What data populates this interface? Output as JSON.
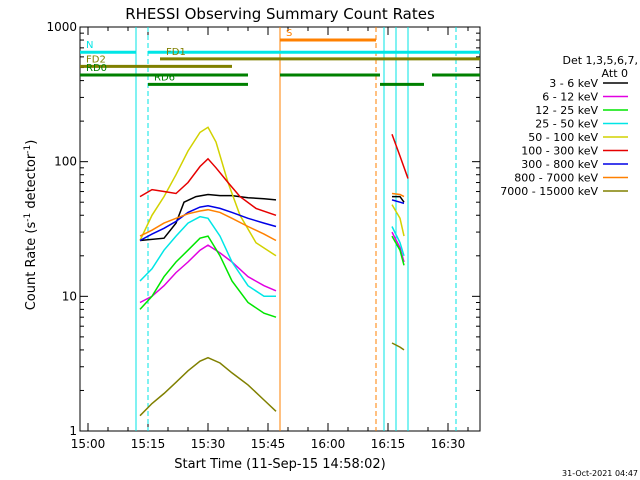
{
  "chart_data": {
    "type": "line",
    "title": "RHESSI Observing Summary Count Rates",
    "xlabel": "Start Time (11-Sep-15 14:58:02)",
    "ylabel_main": "Count Rate (s",
    "ylabel_sup1": "-1",
    "ylabel_mid": " detector",
    "ylabel_sup2": "-1",
    "ylabel_end": ")",
    "yscale": "log",
    "x_range": [
      "14:58",
      "16:38"
    ],
    "ylim": [
      1,
      1000
    ],
    "x_ticks": [
      "15:00",
      "15:15",
      "15:30",
      "15:45",
      "16:00",
      "16:15",
      "16:30"
    ],
    "y_ticks": [
      "1",
      "10",
      "100",
      "1000"
    ],
    "legend_title": "Det 1,3,5,6,7,",
    "legend_subtitle": "Att 0",
    "legend_placement": "right",
    "timestamp": "31-Oct-2021 04:47",
    "colors": {
      "3-6": "#000000",
      "6-12": "#e100e1",
      "12-25": "#00e600",
      "25-50": "#00e6e6",
      "50-100": "#d2d200",
      "100-300": "#e60000",
      "300-800": "#0000e6",
      "800-7000": "#ff8000",
      "7000-15000": "#808000",
      "N": "#00e6e6",
      "FD": "#808000",
      "RD": "#008000",
      "S": "#ff8000"
    },
    "series": [
      {
        "name": "3 - 6 keV",
        "color_key": "3-6",
        "points": [
          [
            "15:13",
            26
          ],
          [
            "15:19",
            27
          ],
          [
            "15:22",
            35
          ],
          [
            "15:24",
            50
          ],
          [
            "15:27",
            55
          ],
          [
            "15:30",
            57
          ],
          [
            "15:33",
            56
          ],
          [
            "15:36",
            56
          ],
          [
            "15:40",
            54
          ],
          [
            "15:44",
            53
          ],
          [
            "15:47",
            52
          ]
        ],
        "flare2": [
          [
            "16:16",
            55
          ],
          [
            "16:18",
            55
          ],
          [
            "16:19",
            50
          ]
        ]
      },
      {
        "name": "6 - 12 keV",
        "color_key": "6-12",
        "points": [
          [
            "15:13",
            9
          ],
          [
            "15:16",
            10
          ],
          [
            "15:19",
            12
          ],
          [
            "15:22",
            15
          ],
          [
            "15:25",
            18
          ],
          [
            "15:28",
            22
          ],
          [
            "15:30",
            24
          ],
          [
            "15:33",
            21
          ],
          [
            "15:36",
            18
          ],
          [
            "15:40",
            14
          ],
          [
            "15:44",
            12
          ],
          [
            "15:47",
            11
          ]
        ],
        "flare2": [
          [
            "16:16",
            30
          ],
          [
            "16:18",
            23
          ],
          [
            "16:19",
            18
          ]
        ]
      },
      {
        "name": "12 - 25 keV",
        "color_key": "12-25",
        "points": [
          [
            "15:13",
            8
          ],
          [
            "15:16",
            10
          ],
          [
            "15:19",
            14
          ],
          [
            "15:22",
            18
          ],
          [
            "15:25",
            22
          ],
          [
            "15:28",
            27
          ],
          [
            "15:30",
            28
          ],
          [
            "15:33",
            20
          ],
          [
            "15:36",
            13
          ],
          [
            "15:40",
            9
          ],
          [
            "15:44",
            7.5
          ],
          [
            "15:47",
            7
          ]
        ],
        "flare2": [
          [
            "16:16",
            28
          ],
          [
            "16:18",
            22
          ],
          [
            "16:19",
            17
          ]
        ]
      },
      {
        "name": "25 - 50 keV",
        "color_key": "25-50",
        "points": [
          [
            "15:13",
            13
          ],
          [
            "15:16",
            16
          ],
          [
            "15:19",
            22
          ],
          [
            "15:22",
            28
          ],
          [
            "15:25",
            35
          ],
          [
            "15:28",
            39
          ],
          [
            "15:30",
            38
          ],
          [
            "15:33",
            28
          ],
          [
            "15:36",
            18
          ],
          [
            "15:40",
            12
          ],
          [
            "15:44",
            10
          ],
          [
            "15:47",
            10
          ]
        ],
        "flare2": [
          [
            "16:16",
            33
          ],
          [
            "16:18",
            25
          ],
          [
            "16:19",
            20
          ]
        ]
      },
      {
        "name": "50 - 100 keV",
        "color_key": "50-100",
        "points": [
          [
            "15:13",
            26
          ],
          [
            "15:16",
            40
          ],
          [
            "15:19",
            55
          ],
          [
            "15:22",
            80
          ],
          [
            "15:25",
            120
          ],
          [
            "15:28",
            165
          ],
          [
            "15:30",
            180
          ],
          [
            "15:32",
            140
          ],
          [
            "15:35",
            70
          ],
          [
            "15:38",
            40
          ],
          [
            "15:42",
            25
          ],
          [
            "15:47",
            20
          ]
        ],
        "flare2": [
          [
            "16:16",
            48
          ],
          [
            "16:18",
            38
          ],
          [
            "16:19",
            28
          ]
        ]
      },
      {
        "name": "100 - 300 keV",
        "color_key": "100-300",
        "points": [
          [
            "15:13",
            55
          ],
          [
            "15:16",
            62
          ],
          [
            "15:19",
            60
          ],
          [
            "15:22",
            58
          ],
          [
            "15:25",
            70
          ],
          [
            "15:28",
            92
          ],
          [
            "15:30",
            105
          ],
          [
            "15:32",
            90
          ],
          [
            "15:35",
            70
          ],
          [
            "15:38",
            55
          ],
          [
            "15:42",
            45
          ],
          [
            "15:47",
            40
          ]
        ],
        "flare2": [
          [
            "16:16",
            160
          ],
          [
            "16:18",
            110
          ],
          [
            "16:20",
            75
          ]
        ]
      },
      {
        "name": "300 - 800 keV",
        "color_key": "300-800",
        "points": [
          [
            "15:13",
            26
          ],
          [
            "15:16",
            29
          ],
          [
            "15:19",
            32
          ],
          [
            "15:22",
            36
          ],
          [
            "15:25",
            42
          ],
          [
            "15:28",
            46
          ],
          [
            "15:30",
            47
          ],
          [
            "15:33",
            45
          ],
          [
            "15:36",
            42
          ],
          [
            "15:40",
            38
          ],
          [
            "15:44",
            35
          ],
          [
            "15:47",
            33
          ]
        ],
        "flare2": [
          [
            "16:16",
            52
          ],
          [
            "16:18",
            50
          ],
          [
            "16:19",
            49
          ]
        ]
      },
      {
        "name": "800 - 7000 keV",
        "color_key": "800-7000",
        "points": [
          [
            "15:13",
            28
          ],
          [
            "15:16",
            31
          ],
          [
            "15:19",
            35
          ],
          [
            "15:22",
            38
          ],
          [
            "15:25",
            41
          ],
          [
            "15:28",
            43
          ],
          [
            "15:30",
            44
          ],
          [
            "15:33",
            42
          ],
          [
            "15:36",
            38
          ],
          [
            "15:40",
            33
          ],
          [
            "15:44",
            29
          ],
          [
            "15:47",
            26
          ]
        ],
        "flare2": [
          [
            "16:16",
            58
          ],
          [
            "16:18",
            57
          ],
          [
            "16:19",
            55
          ]
        ]
      },
      {
        "name": "7000 - 15000 keV",
        "color_key": "7000-15000",
        "points": [
          [
            "15:13",
            1.3
          ],
          [
            "15:16",
            1.6
          ],
          [
            "15:19",
            1.9
          ],
          [
            "15:22",
            2.3
          ],
          [
            "15:25",
            2.8
          ],
          [
            "15:28",
            3.3
          ],
          [
            "15:30",
            3.5
          ],
          [
            "15:33",
            3.2
          ],
          [
            "15:36",
            2.7
          ],
          [
            "15:40",
            2.2
          ],
          [
            "15:44",
            1.7
          ],
          [
            "15:47",
            1.4
          ]
        ],
        "flare2": [
          [
            "16:16",
            4.5
          ],
          [
            "16:18",
            4.2
          ],
          [
            "16:19",
            4.0
          ]
        ]
      }
    ],
    "flags": [
      {
        "label": "N",
        "color_key": "N",
        "segments": [
          [
            "14:58",
            "15:12"
          ],
          [
            "15:15",
            "16:38"
          ]
        ],
        "level": 650
      },
      {
        "label": "FD1",
        "color_key": "FD",
        "segments": [
          [
            "15:18",
            "16:38"
          ]
        ],
        "level": 580
      },
      {
        "label": "FD2",
        "color_key": "FD",
        "segments": [
          [
            "14:58",
            "15:36"
          ]
        ],
        "level": 510
      },
      {
        "label": "RD0",
        "color_key": "RD",
        "segments": [
          [
            "14:58",
            "15:40"
          ],
          [
            "15:48",
            "16:13"
          ],
          [
            "16:26",
            "16:38"
          ]
        ],
        "level": 440
      },
      {
        "label": "RD6",
        "color_key": "RD",
        "segments": [
          [
            "15:15",
            "15:40"
          ],
          [
            "16:13",
            "16:24"
          ]
        ],
        "level": 375
      },
      {
        "label": "S",
        "color_key": "S",
        "segments": [
          [
            "15:48",
            "16:12"
          ]
        ],
        "level": 800
      }
    ],
    "vlines": [
      {
        "t": "15:12",
        "color_key": "N",
        "dashed": false
      },
      {
        "t": "15:15",
        "color_key": "N",
        "dashed": true
      },
      {
        "t": "15:48",
        "color_key": "S",
        "dashed": false
      },
      {
        "t": "16:12",
        "color_key": "S",
        "dashed": true
      },
      {
        "t": "16:14",
        "color_key": "N",
        "dashed": false
      },
      {
        "t": "16:17",
        "color_key": "N",
        "dashed": false
      },
      {
        "t": "16:20",
        "color_key": "N",
        "dashed": false
      },
      {
        "t": "16:32",
        "color_key": "N",
        "dashed": true
      }
    ]
  }
}
